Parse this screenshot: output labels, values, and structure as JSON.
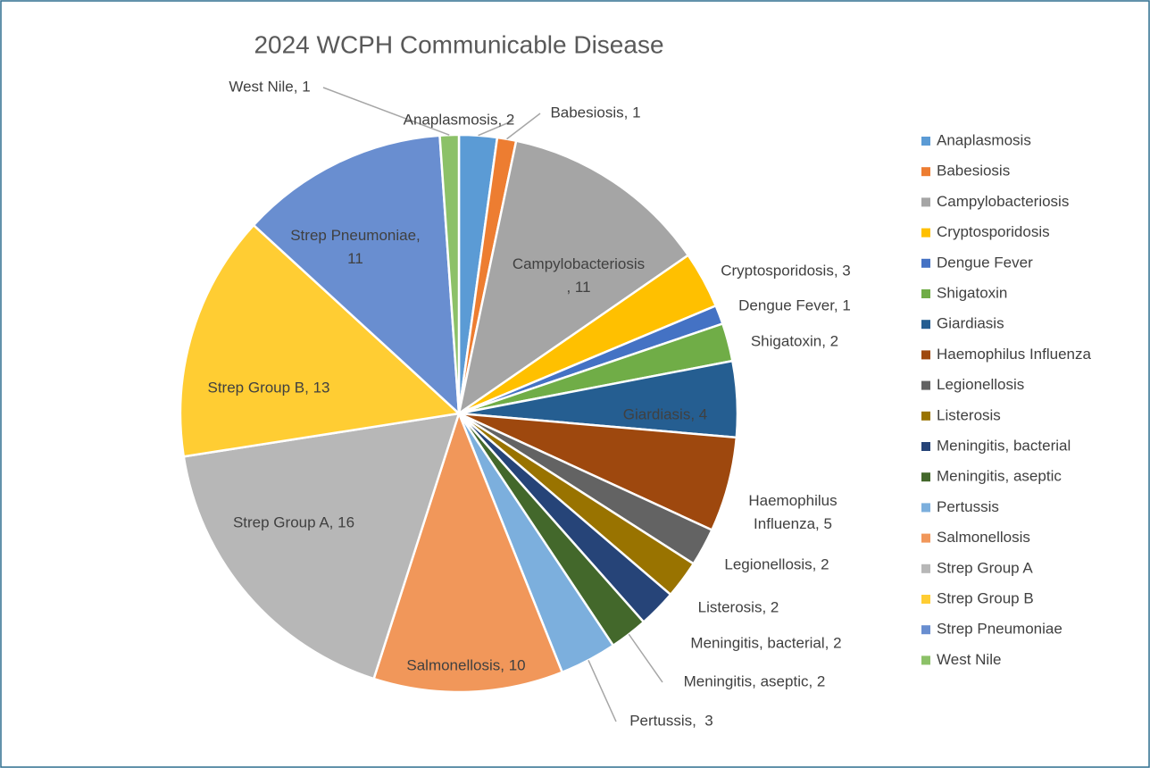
{
  "chart_data": {
    "type": "pie",
    "title": "2024 WCPH Communicable Disease",
    "categories": [
      "Anaplasmosis",
      "Babesiosis",
      "Campylobacteriosis",
      "Cryptosporidosis",
      "Dengue Fever",
      "Shigatoxin",
      "Giardiasis",
      "Haemophilus Influenza",
      "Legionellosis",
      "Listerosis",
      "Meningitis, bacterial",
      "Meningitis, aseptic",
      "Pertussis",
      "Salmonellosis",
      "Strep Group A",
      "Strep Group B",
      "Strep Pneumoniae",
      "West Nile"
    ],
    "values": [
      2,
      1,
      11,
      3,
      1,
      2,
      4,
      5,
      2,
      2,
      2,
      2,
      3,
      10,
      16,
      13,
      11,
      1
    ],
    "value_labels": [
      "Anaplasmosis, 2",
      "Babesiosis, 1",
      "Campylobacteriosis\n, 11",
      "Cryptosporidosis, 3",
      "Dengue Fever, 1",
      "Shigatoxin, 2",
      "Giardiasis, 4",
      "Haemophilus\nInfluenza, 5",
      "Legionellosis, 2",
      "Listerosis, 2",
      "Meningitis, bacterial, 2",
      "Meningitis, aseptic, 2",
      "Pertussis,  3",
      "Salmonellosis, 10",
      "Strep Group A, 16",
      "Strep Group B, 13",
      "Strep Pneumoniae,\n11",
      "West Nile, 1"
    ],
    "colors": [
      "#5b9bd5",
      "#ed7d31",
      "#a5a5a5",
      "#ffc000",
      "#4472c4",
      "#70ad47",
      "#255e91",
      "#9e480e",
      "#636363",
      "#997300",
      "#264478",
      "#43682b",
      "#7cafdd",
      "#f1975a",
      "#b7b7b7",
      "#ffcd33",
      "#698ed0",
      "#8cc168"
    ],
    "legend": "right"
  }
}
